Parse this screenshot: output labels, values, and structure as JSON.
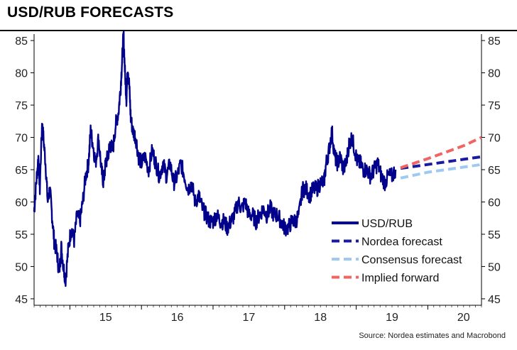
{
  "title": "USD/RUB FORECASTS",
  "source": "Source: Nordea estimates and Macrobond",
  "chart_data": {
    "type": "line",
    "title": "USD/RUB FORECASTS",
    "xlabel": "",
    "ylabel": "",
    "ylim": [
      44,
      86
    ],
    "y_ticks": [
      45,
      50,
      55,
      60,
      65,
      70,
      75,
      80,
      85
    ],
    "x_range": [
      2014.5,
      2020.75
    ],
    "x_ticks": [
      {
        "label": "15",
        "pos": 2015.5
      },
      {
        "label": "16",
        "pos": 2016.5
      },
      {
        "label": "17",
        "pos": 2017.5
      },
      {
        "label": "18",
        "pos": 2018.5
      },
      {
        "label": "19",
        "pos": 2019.5
      },
      {
        "label": "20",
        "pos": 2020.5
      }
    ],
    "year_boundaries": [
      2015,
      2016,
      2017,
      2018,
      2019,
      2020
    ],
    "series": [
      {
        "name": "USD/RUB",
        "color": "#00008b",
        "style": "solid",
        "points": [
          [
            2014.5,
            58.5
          ],
          [
            2014.53,
            63
          ],
          [
            2014.56,
            67
          ],
          [
            2014.58,
            62
          ],
          [
            2014.61,
            72
          ],
          [
            2014.63,
            70
          ],
          [
            2014.66,
            66
          ],
          [
            2014.69,
            60
          ],
          [
            2014.72,
            62
          ],
          [
            2014.75,
            58
          ],
          [
            2014.78,
            54
          ],
          [
            2014.82,
            52
          ],
          [
            2014.85,
            49
          ],
          [
            2014.88,
            53
          ],
          [
            2014.91,
            50
          ],
          [
            2014.94,
            48
          ],
          [
            2014.98,
            53
          ],
          [
            2015.02,
            56
          ],
          [
            2015.06,
            54
          ],
          [
            2015.1,
            58
          ],
          [
            2015.14,
            57
          ],
          [
            2015.18,
            60
          ],
          [
            2015.22,
            64
          ],
          [
            2015.26,
            66
          ],
          [
            2015.29,
            71
          ],
          [
            2015.32,
            69
          ],
          [
            2015.36,
            66
          ],
          [
            2015.4,
            70
          ],
          [
            2015.44,
            65
          ],
          [
            2015.47,
            63
          ],
          [
            2015.5,
            66
          ],
          [
            2015.53,
            67
          ],
          [
            2015.56,
            69
          ],
          [
            2015.6,
            68
          ],
          [
            2015.64,
            72
          ],
          [
            2015.68,
            74
          ],
          [
            2015.71,
            78
          ],
          [
            2015.73,
            82
          ],
          [
            2015.75,
            86
          ],
          [
            2015.77,
            80
          ],
          [
            2015.79,
            76
          ],
          [
            2015.81,
            81
          ],
          [
            2015.83,
            78
          ],
          [
            2015.85,
            73
          ],
          [
            2015.88,
            71
          ],
          [
            2015.92,
            70
          ],
          [
            2015.96,
            67
          ],
          [
            2016.0,
            66
          ],
          [
            2016.05,
            67
          ],
          [
            2016.1,
            65
          ],
          [
            2016.15,
            68
          ],
          [
            2016.2,
            66
          ],
          [
            2016.25,
            64
          ],
          [
            2016.3,
            66
          ],
          [
            2016.35,
            64
          ],
          [
            2016.4,
            66
          ],
          [
            2016.45,
            63
          ],
          [
            2016.5,
            64
          ],
          [
            2016.55,
            66
          ],
          [
            2016.6,
            64
          ],
          [
            2016.65,
            62
          ],
          [
            2016.7,
            63
          ],
          [
            2016.75,
            60
          ],
          [
            2016.8,
            61
          ],
          [
            2016.85,
            59
          ],
          [
            2016.9,
            58
          ],
          [
            2016.95,
            57
          ],
          [
            2017.0,
            57
          ],
          [
            2017.05,
            58
          ],
          [
            2017.1,
            57
          ],
          [
            2017.15,
            57
          ],
          [
            2017.2,
            56
          ],
          [
            2017.25,
            57
          ],
          [
            2017.3,
            58
          ],
          [
            2017.35,
            60
          ],
          [
            2017.4,
            59
          ],
          [
            2017.45,
            60
          ],
          [
            2017.5,
            58
          ],
          [
            2017.55,
            58
          ],
          [
            2017.6,
            57
          ],
          [
            2017.65,
            58
          ],
          [
            2017.7,
            59
          ],
          [
            2017.75,
            58
          ],
          [
            2017.8,
            59
          ],
          [
            2017.85,
            58
          ],
          [
            2017.9,
            58
          ],
          [
            2017.95,
            57
          ],
          [
            2018.0,
            56
          ],
          [
            2018.05,
            56
          ],
          [
            2018.1,
            57
          ],
          [
            2018.15,
            57
          ],
          [
            2018.2,
            58
          ],
          [
            2018.25,
            62
          ],
          [
            2018.3,
            62
          ],
          [
            2018.35,
            61
          ],
          [
            2018.4,
            62
          ],
          [
            2018.45,
            62
          ],
          [
            2018.5,
            63
          ],
          [
            2018.55,
            63
          ],
          [
            2018.58,
            66
          ],
          [
            2018.62,
            68
          ],
          [
            2018.66,
            71
          ],
          [
            2018.7,
            67
          ],
          [
            2018.74,
            66
          ],
          [
            2018.78,
            67
          ],
          [
            2018.82,
            65
          ],
          [
            2018.86,
            66
          ],
          [
            2018.9,
            69
          ],
          [
            2018.94,
            70
          ],
          [
            2018.98,
            68
          ],
          [
            2019.02,
            66
          ],
          [
            2019.06,
            66
          ],
          [
            2019.1,
            65
          ],
          [
            2019.15,
            65
          ],
          [
            2019.2,
            64
          ],
          [
            2019.25,
            65
          ],
          [
            2019.3,
            66
          ],
          [
            2019.35,
            64
          ],
          [
            2019.4,
            63
          ],
          [
            2019.45,
            64
          ],
          [
            2019.5,
            64
          ],
          [
            2019.55,
            65
          ]
        ]
      },
      {
        "name": "Nordea forecast",
        "color": "#1a1aa0",
        "style": "dashed",
        "points": [
          [
            2019.62,
            65.2
          ],
          [
            2020.0,
            65.8
          ],
          [
            2020.5,
            66.6
          ],
          [
            2020.75,
            67.0
          ]
        ]
      },
      {
        "name": "Consensus forecast",
        "color": "#9ec9f0",
        "style": "dashed",
        "points": [
          [
            2019.62,
            63.7
          ],
          [
            2020.0,
            64.6
          ],
          [
            2020.5,
            65.4
          ],
          [
            2020.75,
            65.8
          ]
        ]
      },
      {
        "name": "Implied forward",
        "color": "#f06464",
        "style": "dashed",
        "points": [
          [
            2019.62,
            65.3
          ],
          [
            2020.0,
            66.7
          ],
          [
            2020.5,
            68.7
          ],
          [
            2020.75,
            70.0
          ]
        ]
      }
    ],
    "legend_placement": "bottom-right"
  }
}
